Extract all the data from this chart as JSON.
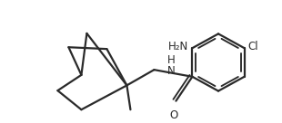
{
  "bg_color": "#ffffff",
  "line_color": "#2a2a2a",
  "line_width": 1.6,
  "figsize": [
    3.1,
    1.36
  ],
  "dpi": 100,
  "label_H2N": "H₂N",
  "label_Cl": "Cl",
  "label_NH": "H\nN",
  "label_O": "O",
  "fontsize": 8.5
}
